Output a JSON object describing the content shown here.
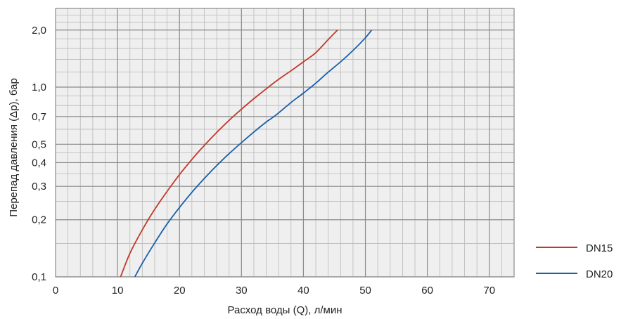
{
  "chart_data": {
    "type": "line",
    "title": "",
    "xlabel": "Расход воды (Q), л/мин",
    "ylabel": "Перепад давления (Δp), бар",
    "xlim": [
      0,
      74
    ],
    "ylim": [
      0.1,
      2.6
    ],
    "yscale": "log",
    "x_ticks": [
      0,
      10,
      20,
      30,
      40,
      50,
      60,
      70
    ],
    "x_tick_labels": [
      "0",
      "10",
      "20",
      "30",
      "40",
      "50",
      "60",
      "70"
    ],
    "y_ticks": [
      0.1,
      0.2,
      0.3,
      0.4,
      0.5,
      0.7,
      1.0,
      2.0
    ],
    "y_tick_labels": [
      "0,1",
      "0,2",
      "0,3",
      "0,4",
      "0,5",
      "0,7",
      "1,0",
      "2,0"
    ],
    "grid": true,
    "legend_position": "right",
    "series": [
      {
        "name": "DN15",
        "color": "#c0392b",
        "x": [
          10.5,
          12,
          14,
          16,
          18,
          20,
          22,
          24,
          26,
          28,
          30,
          32,
          34,
          36,
          38,
          40,
          42,
          44,
          45.5
        ],
        "y": [
          0.1,
          0.133,
          0.177,
          0.227,
          0.282,
          0.346,
          0.416,
          0.493,
          0.577,
          0.668,
          0.765,
          0.869,
          0.98,
          1.1,
          1.22,
          1.36,
          1.52,
          1.78,
          2.0
        ]
      },
      {
        "name": "DN20",
        "color": "#1a5fa8",
        "x": [
          12.8,
          14,
          16,
          18,
          20,
          22,
          24,
          26,
          28,
          30,
          32,
          34,
          35.5,
          38,
          40,
          42,
          44,
          46,
          48,
          50,
          51
        ],
        "y": [
          0.1,
          0.118,
          0.151,
          0.19,
          0.232,
          0.279,
          0.33,
          0.386,
          0.446,
          0.51,
          0.58,
          0.655,
          0.71,
          0.83,
          0.93,
          1.05,
          1.2,
          1.36,
          1.56,
          1.82,
          2.0
        ]
      }
    ]
  }
}
